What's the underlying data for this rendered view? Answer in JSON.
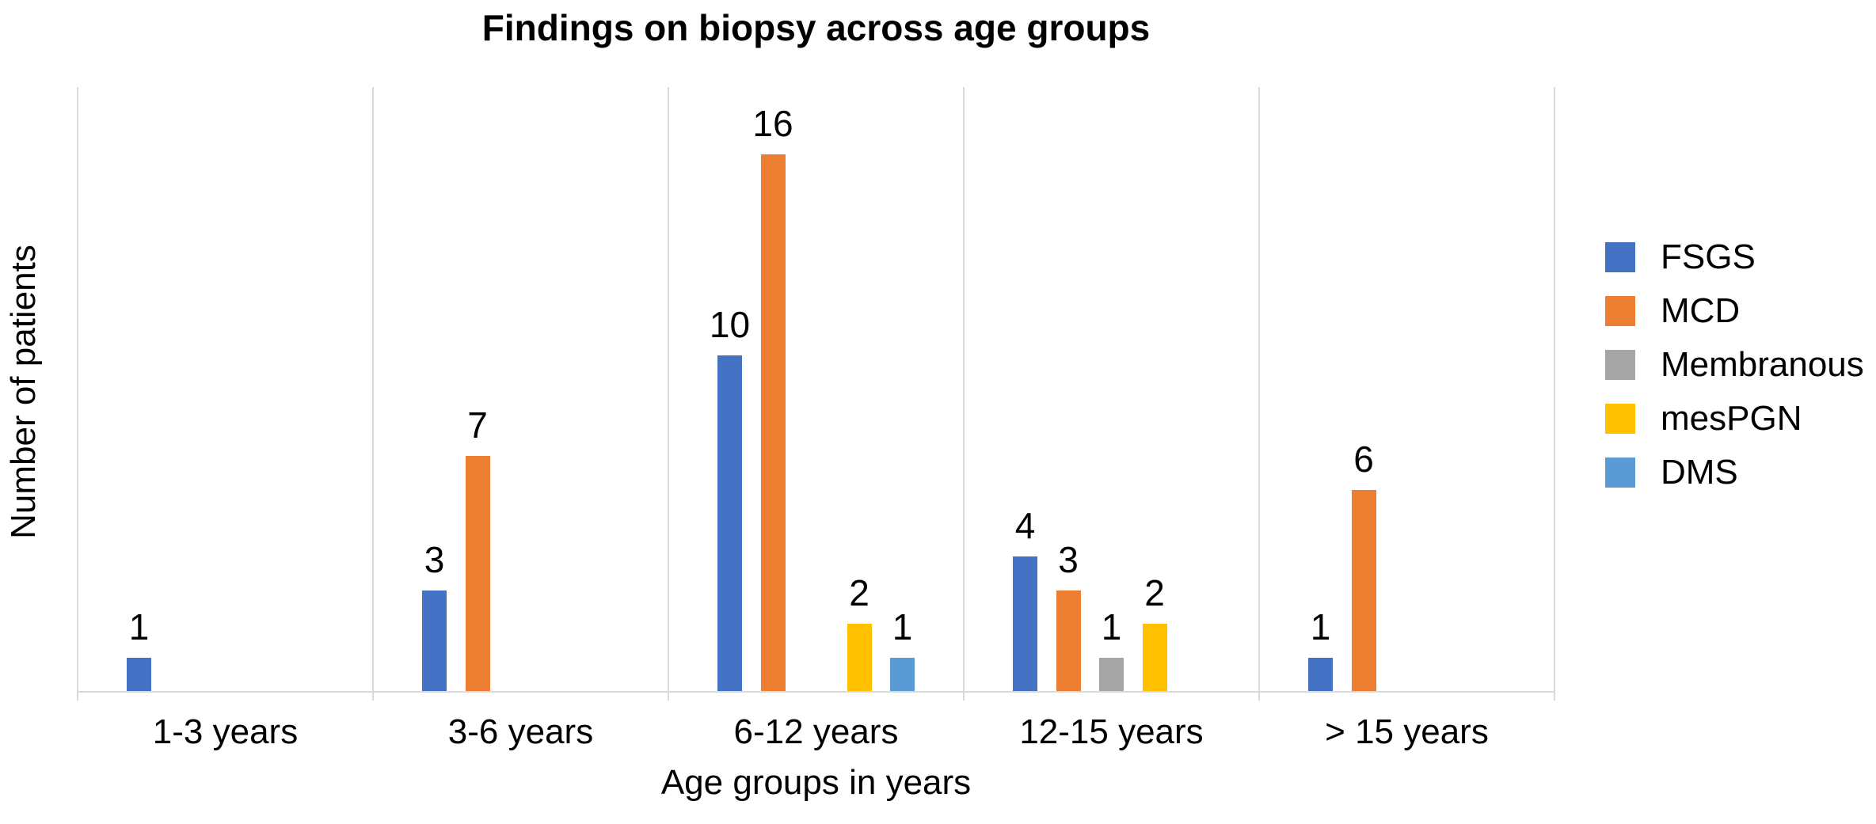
{
  "chart_data": {
    "type": "bar",
    "title": "Findings on biopsy across age groups",
    "xlabel": "Age groups in years",
    "ylabel": "Number of patients",
    "categories": [
      "1-3 years",
      "3-6 years",
      "6-12 years",
      "12-15 years",
      "> 15 years"
    ],
    "series": [
      {
        "name": "FSGS",
        "color": "#4472C4",
        "values": [
          1,
          3,
          10,
          4,
          1
        ]
      },
      {
        "name": "MCD",
        "color": "#ED7D31",
        "values": [
          0,
          7,
          16,
          3,
          6
        ]
      },
      {
        "name": "Membranous",
        "color": "#A5A5A5",
        "values": [
          0,
          0,
          0,
          1,
          0
        ]
      },
      {
        "name": "mesPGN",
        "color": "#FFC000",
        "values": [
          0,
          0,
          2,
          2,
          0
        ]
      },
      {
        "name": "DMS",
        "color": "#5B9BD5",
        "values": [
          0,
          0,
          1,
          0,
          0
        ]
      }
    ],
    "ylim": [
      0,
      18
    ],
    "y_tick_labels_visible": false,
    "grid": "vertical-category-separators",
    "legend_position": "right",
    "data_labels": true,
    "colors": {
      "gridline": "#D9D9D9",
      "axis_line": "#D9D9D9",
      "text": "#000000",
      "background": "#FFFFFF"
    }
  }
}
